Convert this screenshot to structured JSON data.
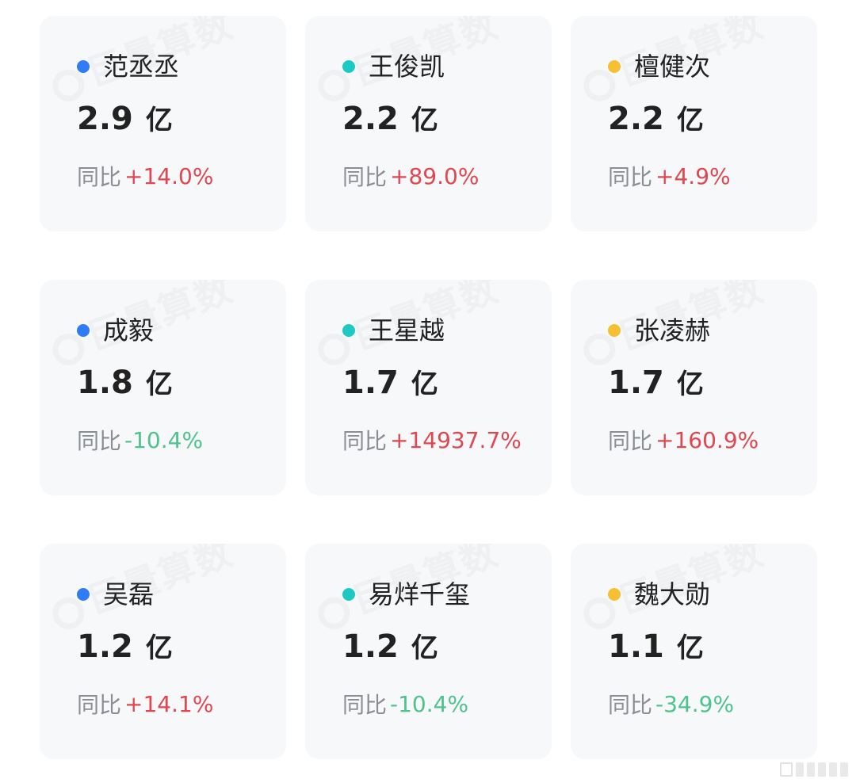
{
  "watermark": "巨量算数",
  "colors": {
    "blue": "#2f7cf6",
    "teal": "#1ec9c4",
    "yellow": "#f7bf32",
    "positive": "#e0474f",
    "negative": "#4fc38e"
  },
  "yoy_label": "同比",
  "cards": [
    {
      "name": "范丞丞",
      "value": "2.9",
      "unit": "亿",
      "yoy": "+14.0%",
      "dot": "blue",
      "trend": "pos"
    },
    {
      "name": "王俊凯",
      "value": "2.2",
      "unit": "亿",
      "yoy": "+89.0%",
      "dot": "teal",
      "trend": "pos"
    },
    {
      "name": "檀健次",
      "value": "2.2",
      "unit": "亿",
      "yoy": "+4.9%",
      "dot": "yellow",
      "trend": "pos"
    },
    {
      "name": "成毅",
      "value": "1.8",
      "unit": "亿",
      "yoy": "-10.4%",
      "dot": "blue",
      "trend": "neg"
    },
    {
      "name": "王星越",
      "value": "1.7",
      "unit": "亿",
      "yoy": "+14937.7%",
      "dot": "teal",
      "trend": "pos"
    },
    {
      "name": "张凌赫",
      "value": "1.7",
      "unit": "亿",
      "yoy": "+160.9%",
      "dot": "yellow",
      "trend": "pos"
    },
    {
      "name": "吴磊",
      "value": "1.2",
      "unit": "亿",
      "yoy": "+14.1%",
      "dot": "blue",
      "trend": "pos"
    },
    {
      "name": "易烊千玺",
      "value": "1.2",
      "unit": "亿",
      "yoy": "-10.4%",
      "dot": "teal",
      "trend": "neg"
    },
    {
      "name": "魏大勋",
      "value": "1.1",
      "unit": "亿",
      "yoy": "-34.9%",
      "dot": "yellow",
      "trend": "neg"
    }
  ]
}
